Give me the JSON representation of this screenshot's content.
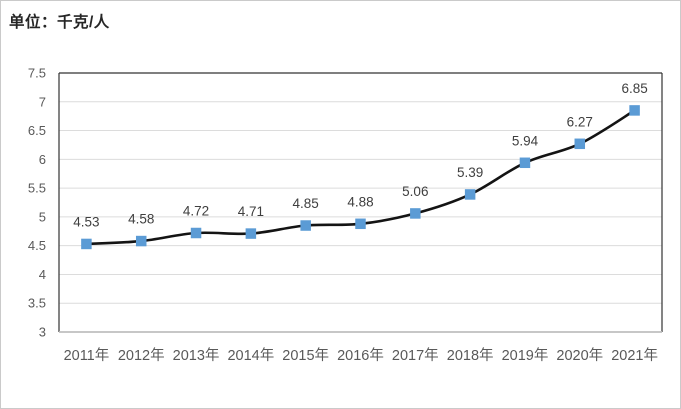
{
  "chart": {
    "unit_label": "单位：千克/人"
  },
  "chart_data": {
    "type": "line",
    "title": "",
    "unit_label": "单位：千克/人",
    "categories": [
      "2011年",
      "2012年",
      "2013年",
      "2014年",
      "2015年",
      "2016年",
      "2017年",
      "2018年",
      "2019年",
      "2020年",
      "2021年"
    ],
    "series": [
      {
        "name": "人均量",
        "values": [
          4.53,
          4.58,
          4.72,
          4.71,
          4.85,
          4.88,
          5.06,
          5.39,
          5.94,
          6.27,
          6.85
        ]
      }
    ],
    "data_labels": [
      "4.53",
      "4.58",
      "4.72",
      "4.71",
      "4.85",
      "4.88",
      "5.06",
      "5.39",
      "5.94",
      "6.27",
      "6.85"
    ],
    "ylim": [
      3,
      7.5
    ],
    "ytick_step": 0.5,
    "yticks": [
      "3",
      "3.5",
      "4",
      "4.5",
      "5",
      "5.5",
      "6",
      "6.5",
      "7",
      "7.5"
    ],
    "xlabel": "",
    "ylabel": "",
    "grid": true,
    "line_smooth": true,
    "legend": "none",
    "marker_shape": "square",
    "colors": {
      "line": "#141414",
      "marker": "#5b9bd5",
      "gridline": "#dcdcdc",
      "plot_border": "#333333",
      "axis_line": "#bfbfbf",
      "tick_label": "#595959",
      "data_label": "#3f3f3f",
      "frame_border": "#cacaca"
    }
  }
}
